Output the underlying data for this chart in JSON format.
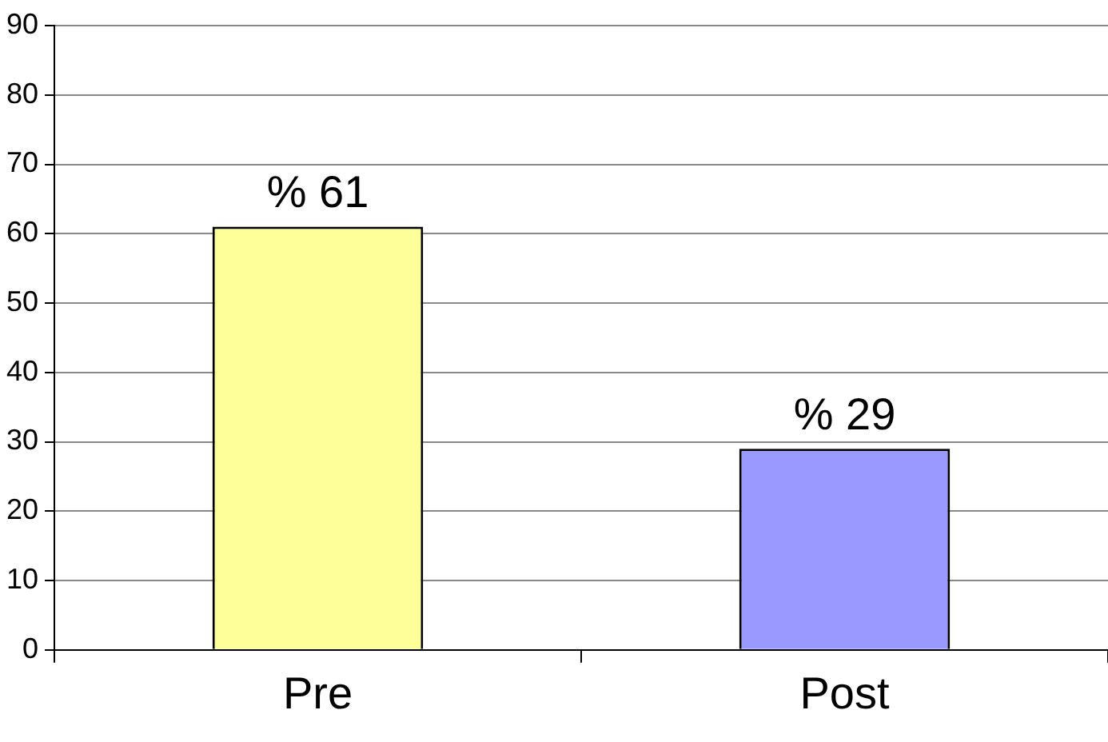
{
  "chart_data": {
    "type": "bar",
    "categories": [
      "Pre",
      "Post"
    ],
    "values": [
      61,
      29
    ],
    "colors": [
      "#ffff99",
      "#9999ff"
    ],
    "value_labels": [
      "% 61",
      "% 29"
    ],
    "ylim": [
      0,
      90
    ],
    "yticks": [
      0,
      10,
      20,
      30,
      40,
      50,
      60,
      70,
      80,
      90
    ],
    "grid": "y",
    "legend": false
  }
}
